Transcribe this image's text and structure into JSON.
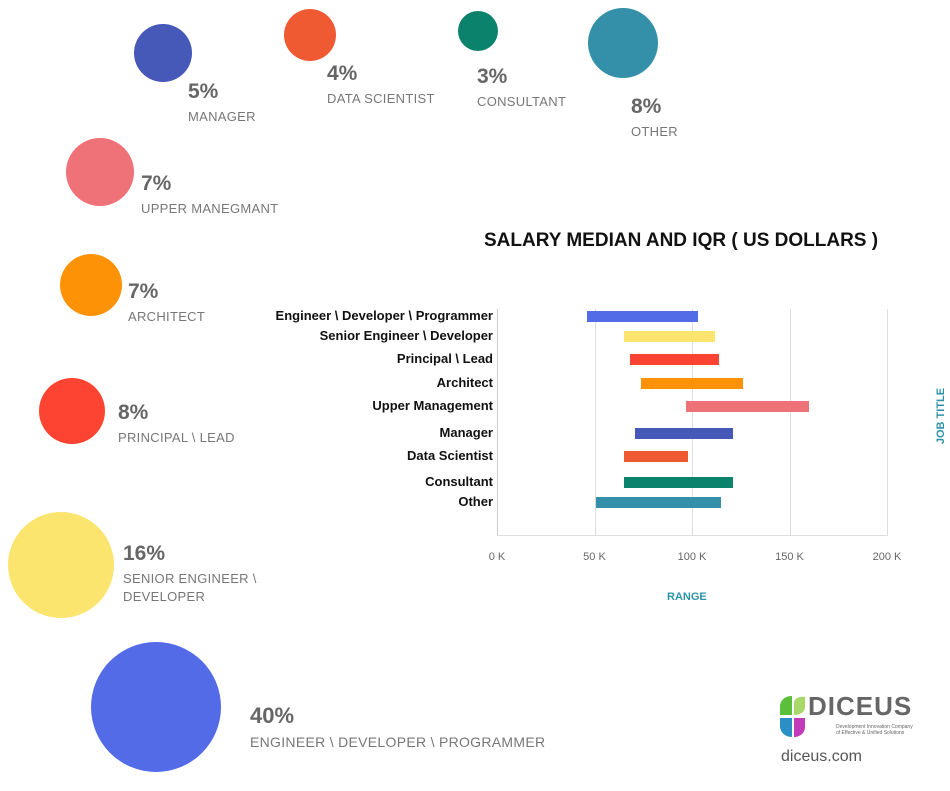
{
  "bubbles": [
    {
      "pct": "5%",
      "label": "MANAGER",
      "color": "#4659b8"
    },
    {
      "pct": "4%",
      "label": "DATA SCIENTIST",
      "color": "#f05a33"
    },
    {
      "pct": "3%",
      "label": "CONSULTANT",
      "color": "#0b826b"
    },
    {
      "pct": "8%",
      "label": "OTHER",
      "color": "#3490a8"
    },
    {
      "pct": "7%",
      "label": "UPPER MANEGMANT",
      "color": "#ef7278"
    },
    {
      "pct": "7%",
      "label": "ARCHITECT",
      "color": "#fd9207"
    },
    {
      "pct": "8%",
      "label": "PRINCIPAL \\ LEAD",
      "color": "#fd4432"
    },
    {
      "pct": "16%",
      "label": "SENIOR ENGINEER \\ DEVELOPER",
      "color": "#fbe56e"
    },
    {
      "pct": "40%",
      "label": "ENGINEER \\ DEVELOPER \\ PROGRAMMER",
      "color": "#546be8"
    }
  ],
  "chart_data": {
    "type": "bar",
    "title": "SALARY MEDIAN AND IQR ( US DOLLARS )",
    "xlabel": "RANGE",
    "ylabel": "JOB TITLE",
    "xlim": [
      0,
      200
    ],
    "xticks": [
      "0 K",
      "50 K",
      "100 K",
      "150 K",
      "200 K"
    ],
    "categories": [
      "Engineer \\ Developer \\ Programmer",
      "Senior Engineer \\ Developer",
      "Principal \\ Lead",
      "Architect",
      "Upper Management",
      "Manager",
      "Data Scientist",
      "Consultant",
      "Other"
    ],
    "ranges_k": [
      [
        46,
        103
      ],
      [
        65,
        112
      ],
      [
        68,
        114
      ],
      [
        74,
        126
      ],
      [
        97,
        160
      ],
      [
        71,
        121
      ],
      [
        65,
        98
      ],
      [
        65,
        121
      ],
      [
        51,
        115
      ]
    ],
    "colors": [
      "#546be8",
      "#fbe56e",
      "#fd4432",
      "#fd9207",
      "#ef7278",
      "#4659b8",
      "#f05a33",
      "#0b826b",
      "#3490a8"
    ]
  },
  "logo": {
    "name": "DICEUS",
    "tagline": "Development Innovation Company of Effective & Unified Solutions",
    "url": "diceus.com"
  }
}
